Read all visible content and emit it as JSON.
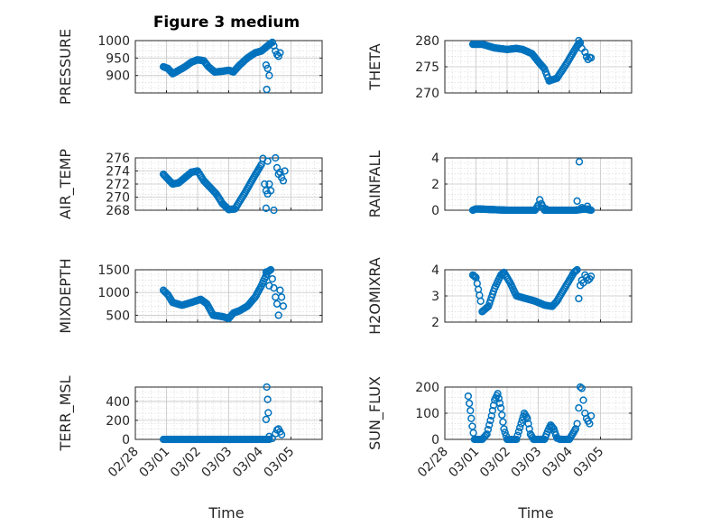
{
  "chart_data": {
    "type": "scatter",
    "title": "Figure 3 medium",
    "xlabel": "Time",
    "x_tick_labels": [
      "02/28",
      "03/01",
      "03/02",
      "03/03",
      "03/04",
      "03/05"
    ],
    "xlim": [
      0,
      6
    ],
    "marker_color": "#0072BD",
    "panels": [
      {
        "name": "PRESSURE",
        "ylabel": "PRESSURE",
        "ylim": [
          850,
          1000
        ],
        "yticks": [
          900,
          950,
          1000
        ],
        "anchors": [
          [
            0.9,
            925
          ],
          [
            1.05,
            920
          ],
          [
            1.2,
            905
          ],
          [
            1.4,
            915
          ],
          [
            1.6,
            925
          ],
          [
            1.8,
            938
          ],
          [
            2.0,
            945
          ],
          [
            2.2,
            942
          ],
          [
            2.35,
            925
          ],
          [
            2.55,
            910
          ],
          [
            2.8,
            912
          ],
          [
            3.0,
            915
          ],
          [
            3.15,
            910
          ],
          [
            3.35,
            930
          ],
          [
            3.6,
            950
          ],
          [
            3.85,
            965
          ],
          [
            4.05,
            970
          ],
          [
            4.25,
            985
          ],
          [
            4.35,
            992
          ]
        ],
        "extra": [
          [
            4.4,
            995
          ],
          [
            4.45,
            985
          ],
          [
            4.5,
            970
          ],
          [
            4.55,
            960
          ],
          [
            4.6,
            955
          ],
          [
            4.65,
            965
          ],
          [
            4.2,
            930
          ],
          [
            4.25,
            920
          ],
          [
            4.3,
            900
          ],
          [
            4.22,
            860
          ]
        ]
      },
      {
        "name": "THETA",
        "ylabel": "THETA",
        "ylim": [
          270,
          280
        ],
        "yticks": [
          270,
          275,
          280
        ],
        "anchors": [
          [
            0.9,
            279.3
          ],
          [
            1.2,
            279.3
          ],
          [
            1.6,
            278.6
          ],
          [
            2.0,
            278.3
          ],
          [
            2.3,
            278.5
          ],
          [
            2.5,
            278.3
          ],
          [
            2.8,
            277.5
          ],
          [
            3.0,
            276.0
          ],
          [
            3.2,
            274.6
          ],
          [
            3.35,
            272.3
          ],
          [
            3.6,
            272.8
          ],
          [
            3.9,
            275.5
          ],
          [
            4.1,
            277.5
          ],
          [
            4.25,
            279.0
          ],
          [
            4.35,
            279.6
          ]
        ],
        "extra": [
          [
            4.3,
            280.0
          ],
          [
            4.4,
            278.5
          ],
          [
            4.5,
            277.8
          ],
          [
            4.55,
            276.9
          ],
          [
            4.6,
            276.4
          ],
          [
            4.65,
            276.8
          ],
          [
            4.7,
            276.7
          ]
        ]
      },
      {
        "name": "AIR_TEMP",
        "ylabel": "AIR_TEMP",
        "ylim": [
          268,
          276
        ],
        "yticks": [
          268,
          270,
          272,
          274,
          276
        ],
        "anchors": [
          [
            0.9,
            273.5
          ],
          [
            1.1,
            272.5
          ],
          [
            1.2,
            272.0
          ],
          [
            1.4,
            272.2
          ],
          [
            1.6,
            273.0
          ],
          [
            1.8,
            273.8
          ],
          [
            2.0,
            274.0
          ],
          [
            2.2,
            272.5
          ],
          [
            2.4,
            271.5
          ],
          [
            2.6,
            270.5
          ],
          [
            2.8,
            269.0
          ],
          [
            3.0,
            268.1
          ],
          [
            3.2,
            268.2
          ],
          [
            3.5,
            270.5
          ],
          [
            3.8,
            273.0
          ],
          [
            4.05,
            275.0
          ],
          [
            4.1,
            275.9
          ]
        ],
        "extra": [
          [
            4.15,
            272.0
          ],
          [
            4.2,
            271.0
          ],
          [
            4.25,
            270.5
          ],
          [
            4.3,
            272.0
          ],
          [
            4.35,
            271.0
          ],
          [
            4.45,
            268.0
          ],
          [
            4.5,
            276.0
          ],
          [
            4.55,
            274.5
          ],
          [
            4.6,
            273.5
          ],
          [
            4.65,
            273.8
          ],
          [
            4.7,
            273.0
          ],
          [
            4.75,
            272.5
          ],
          [
            4.8,
            274.0
          ],
          [
            4.25,
            275.5
          ],
          [
            4.2,
            268.3
          ]
        ]
      },
      {
        "name": "RAINFALL",
        "ylabel": "RAINFALL",
        "ylim": [
          0,
          4
        ],
        "yticks": [
          0,
          2,
          4
        ],
        "anchors": [
          [
            0.9,
            0
          ],
          [
            1.0,
            0.1
          ],
          [
            2.0,
            0
          ],
          [
            2.2,
            0
          ],
          [
            2.9,
            0
          ],
          [
            3.0,
            0.4
          ],
          [
            3.05,
            0.8
          ],
          [
            3.1,
            0.5
          ],
          [
            3.2,
            0
          ],
          [
            4.0,
            0
          ],
          [
            4.2,
            0
          ],
          [
            4.5,
            0.1
          ],
          [
            4.7,
            0
          ]
        ],
        "extra": [
          [
            4.32,
            3.7
          ],
          [
            4.25,
            0.7
          ],
          [
            4.4,
            0.2
          ],
          [
            4.58,
            0.3
          ],
          [
            4.62,
            0.1
          ],
          [
            3.25,
            0.1
          ]
        ]
      },
      {
        "name": "MIXDEPTH",
        "ylabel": "MIXDEPTH",
        "ylim": [
          350,
          1500
        ],
        "yticks": [
          500,
          1000,
          1500
        ],
        "anchors": [
          [
            0.9,
            1050
          ],
          [
            1.05,
            950
          ],
          [
            1.2,
            780
          ],
          [
            1.5,
            720
          ],
          [
            1.8,
            780
          ],
          [
            2.1,
            850
          ],
          [
            2.3,
            750
          ],
          [
            2.5,
            500
          ],
          [
            2.8,
            470
          ],
          [
            3.0,
            430
          ],
          [
            3.15,
            550
          ],
          [
            3.35,
            600
          ],
          [
            3.6,
            700
          ],
          [
            3.85,
            900
          ],
          [
            4.05,
            1150
          ],
          [
            4.25,
            1450
          ],
          [
            4.35,
            1500
          ]
        ],
        "extra": [
          [
            4.4,
            1300
          ],
          [
            4.45,
            1100
          ],
          [
            4.5,
            900
          ],
          [
            4.55,
            750
          ],
          [
            4.6,
            500
          ],
          [
            4.65,
            1050
          ],
          [
            4.7,
            900
          ],
          [
            4.75,
            700
          ],
          [
            4.2,
            1450
          ],
          [
            4.3,
            1150
          ]
        ]
      },
      {
        "name": "H2OMIXRA",
        "ylabel": "H2OMIXRA",
        "ylim": [
          2,
          4
        ],
        "yticks": [
          2,
          3,
          4
        ],
        "anchors": [
          [
            0.9,
            3.8
          ],
          [
            1.0,
            3.7
          ],
          [
            1.15,
            2.8
          ],
          [
            1.2,
            2.4
          ],
          [
            1.4,
            2.6
          ],
          [
            1.6,
            3.3
          ],
          [
            1.8,
            3.8
          ],
          [
            1.9,
            3.9
          ],
          [
            2.1,
            3.5
          ],
          [
            2.3,
            3.0
          ],
          [
            2.6,
            2.9
          ],
          [
            2.9,
            2.8
          ],
          [
            3.2,
            2.65
          ],
          [
            3.45,
            2.6
          ],
          [
            3.6,
            2.8
          ],
          [
            3.8,
            3.2
          ],
          [
            4.0,
            3.6
          ],
          [
            4.15,
            3.9
          ],
          [
            4.25,
            4.0
          ]
        ],
        "extra": [
          [
            4.3,
            2.9
          ],
          [
            4.35,
            3.4
          ],
          [
            4.4,
            3.6
          ],
          [
            4.45,
            3.5
          ],
          [
            4.5,
            3.8
          ],
          [
            4.55,
            3.7
          ],
          [
            4.6,
            3.6
          ],
          [
            4.65,
            3.65
          ],
          [
            4.7,
            3.75
          ]
        ]
      },
      {
        "name": "TERR_MSL",
        "ylabel": "TERR_MSL",
        "ylim": [
          0,
          550
        ],
        "yticks": [
          0,
          200,
          400
        ],
        "anchors": [
          [
            0.9,
            0
          ],
          [
            2.0,
            0
          ],
          [
            3.0,
            0
          ],
          [
            4.0,
            0
          ],
          [
            4.3,
            0
          ]
        ],
        "extra": [
          [
            4.22,
            550
          ],
          [
            4.25,
            420
          ],
          [
            4.2,
            210
          ],
          [
            4.27,
            280
          ],
          [
            4.3,
            30
          ],
          [
            4.4,
            10
          ],
          [
            4.5,
            60
          ],
          [
            4.55,
            100
          ],
          [
            4.6,
            110
          ],
          [
            4.65,
            80
          ],
          [
            4.7,
            50
          ]
        ]
      },
      {
        "name": "SUN_FLUX",
        "ylabel": "SUN_FLUX",
        "ylim": [
          0,
          200
        ],
        "yticks": [
          0,
          100,
          200
        ],
        "anchors": [
          [
            0.75,
            165
          ],
          [
            0.82,
            110
          ],
          [
            0.88,
            50
          ],
          [
            0.95,
            0
          ],
          [
            1.2,
            0
          ],
          [
            1.35,
            20
          ],
          [
            1.5,
            90
          ],
          [
            1.6,
            150
          ],
          [
            1.7,
            175
          ],
          [
            1.8,
            120
          ],
          [
            1.9,
            40
          ],
          [
            2.0,
            0
          ],
          [
            2.3,
            0
          ],
          [
            2.45,
            60
          ],
          [
            2.55,
            100
          ],
          [
            2.65,
            80
          ],
          [
            2.75,
            20
          ],
          [
            2.85,
            0
          ],
          [
            3.2,
            0
          ],
          [
            3.3,
            30
          ],
          [
            3.4,
            55
          ],
          [
            3.5,
            40
          ],
          [
            3.6,
            5
          ],
          [
            3.7,
            0
          ],
          [
            4.0,
            0
          ],
          [
            4.2,
            40
          ]
        ],
        "extra": [
          [
            4.25,
            60
          ],
          [
            4.3,
            120
          ],
          [
            4.35,
            200
          ],
          [
            4.4,
            195
          ],
          [
            4.45,
            150
          ],
          [
            4.5,
            100
          ],
          [
            4.55,
            80
          ],
          [
            4.6,
            70
          ],
          [
            4.65,
            60
          ],
          [
            4.7,
            90
          ]
        ]
      }
    ]
  }
}
